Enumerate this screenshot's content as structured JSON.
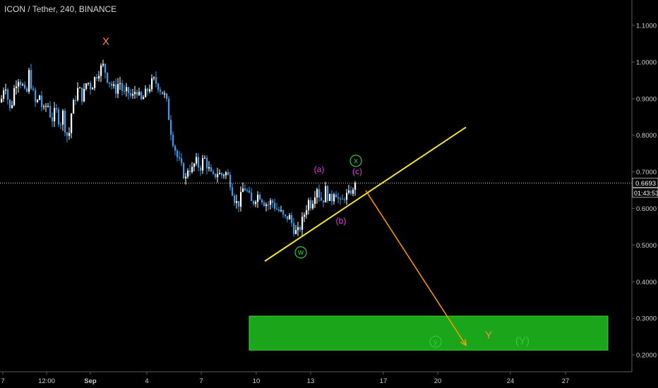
{
  "header": {
    "title": "ICON / Tether, 240, BINANCE"
  },
  "price_axis": {
    "ticks": [
      "1.1000",
      "1.0000",
      "0.9000",
      "0.8000",
      "0.7000",
      "0.6000",
      "0.5000",
      "0.4000",
      "0.3000",
      "0.2000"
    ],
    "last_price": "0.6693",
    "countdown": "01:43:53"
  },
  "chart_data": {
    "type": "candlestick",
    "symbol": "ICON / Tether",
    "interval": "240",
    "exchange": "BINANCE",
    "x_tick_labels": [
      "7",
      "12:00",
      "Sep",
      "4",
      "7",
      "10",
      "13",
      "17",
      "20",
      "24",
      "27"
    ],
    "ylim": [
      0.17,
      1.15
    ],
    "current_price": 0.6693,
    "price_path": [
      [
        0,
        0.89
      ],
      [
        6,
        0.95
      ],
      [
        10,
        0.9
      ],
      [
        14,
        0.86
      ],
      [
        18,
        0.92
      ],
      [
        24,
        0.96
      ],
      [
        30,
        0.94
      ],
      [
        36,
        0.9
      ],
      [
        40,
        0.97
      ],
      [
        45,
        0.92
      ],
      [
        50,
        0.88
      ],
      [
        55,
        0.91
      ],
      [
        60,
        0.86
      ],
      [
        66,
        0.89
      ],
      [
        72,
        0.84
      ],
      [
        78,
        0.87
      ],
      [
        84,
        0.83
      ],
      [
        88,
        0.86
      ],
      [
        92,
        0.81
      ],
      [
        96,
        0.79
      ],
      [
        100,
        0.86
      ],
      [
        105,
        0.9
      ],
      [
        110,
        0.93
      ],
      [
        116,
        0.9
      ],
      [
        122,
        0.95
      ],
      [
        128,
        0.93
      ],
      [
        134,
        0.96
      ],
      [
        140,
        0.98
      ],
      [
        146,
        0.99
      ],
      [
        150,
        0.96
      ],
      [
        156,
        0.94
      ],
      [
        162,
        0.92
      ],
      [
        168,
        0.95
      ],
      [
        174,
        0.91
      ],
      [
        180,
        0.92
      ],
      [
        186,
        0.9
      ],
      [
        192,
        0.93
      ],
      [
        198,
        0.89
      ],
      [
        204,
        0.91
      ],
      [
        210,
        0.93
      ],
      [
        216,
        0.95
      ],
      [
        222,
        0.94
      ],
      [
        228,
        0.92
      ],
      [
        234,
        0.9
      ],
      [
        238,
        0.85
      ],
      [
        242,
        0.8
      ],
      [
        246,
        0.77
      ],
      [
        250,
        0.74
      ],
      [
        254,
        0.72
      ],
      [
        258,
        0.7
      ],
      [
        262,
        0.68
      ],
      [
        266,
        0.72
      ],
      [
        270,
        0.7
      ],
      [
        276,
        0.73
      ],
      [
        282,
        0.71
      ],
      [
        288,
        0.74
      ],
      [
        294,
        0.71
      ],
      [
        300,
        0.68
      ],
      [
        306,
        0.7
      ],
      [
        312,
        0.69
      ],
      [
        318,
        0.7
      ],
      [
        324,
        0.68
      ],
      [
        328,
        0.65
      ],
      [
        332,
        0.62
      ],
      [
        336,
        0.61
      ],
      [
        340,
        0.63
      ],
      [
        344,
        0.66
      ],
      [
        348,
        0.65
      ],
      [
        352,
        0.63
      ],
      [
        356,
        0.61
      ],
      [
        360,
        0.63
      ],
      [
        366,
        0.64
      ],
      [
        372,
        0.62
      ],
      [
        378,
        0.61
      ],
      [
        384,
        0.62
      ],
      [
        390,
        0.6
      ],
      [
        396,
        0.59
      ],
      [
        402,
        0.57
      ],
      [
        408,
        0.58
      ],
      [
        412,
        0.56
      ],
      [
        416,
        0.54
      ],
      [
        420,
        0.53
      ],
      [
        424,
        0.55
      ],
      [
        428,
        0.57
      ],
      [
        432,
        0.6
      ],
      [
        436,
        0.62
      ],
      [
        440,
        0.61
      ],
      [
        444,
        0.64
      ],
      [
        448,
        0.66
      ],
      [
        452,
        0.63
      ],
      [
        456,
        0.62
      ],
      [
        460,
        0.65
      ],
      [
        464,
        0.63
      ],
      [
        468,
        0.62
      ],
      [
        472,
        0.65
      ],
      [
        476,
        0.64
      ],
      [
        480,
        0.61
      ],
      [
        484,
        0.62
      ],
      [
        488,
        0.64
      ],
      [
        492,
        0.63
      ],
      [
        496,
        0.65
      ],
      [
        500,
        0.64
      ],
      [
        504,
        0.67
      ]
    ],
    "annotations": [
      {
        "text": "X",
        "x": 150,
        "y": 1.055,
        "color": "#ff8c40",
        "size": 15
      },
      {
        "text": "(a)",
        "x": 452,
        "y": 0.705,
        "color": "#e040e0",
        "size": 12
      },
      {
        "text": "(b)",
        "x": 483,
        "y": 0.565,
        "color": "#e040e0",
        "size": 12
      },
      {
        "text": "(c)",
        "x": 506,
        "y": 0.7,
        "color": "#e040e0",
        "size": 12
      },
      {
        "text": "Y",
        "x": 692,
        "y": 0.252,
        "color": "#ff8c40",
        "size": 15
      },
      {
        "text": "(Y)",
        "x": 740,
        "y": 0.237,
        "color": "#2ecc40",
        "size": 15
      }
    ],
    "circled_labels": [
      {
        "text": "w",
        "x": 426,
        "y": 0.48,
        "color": "#2ecc40"
      },
      {
        "text": "x",
        "x": 504,
        "y": 0.73,
        "color": "#2ecc40"
      },
      {
        "text": "y",
        "x": 617,
        "y": 0.236,
        "color": "#2ecc40"
      }
    ],
    "trendline": {
      "x1": 375,
      "y1": 0.456,
      "x2": 660,
      "y2": 0.822,
      "color": "#f5e22d"
    },
    "projection_arrow": {
      "x1": 518,
      "y1": 0.649,
      "x2": 660,
      "y2": 0.226,
      "color": "#ff9900"
    },
    "target_zone": {
      "x1": 353,
      "x2": 861,
      "y_low": 0.213,
      "y_high": 0.306,
      "color": "#1aa51a"
    }
  }
}
